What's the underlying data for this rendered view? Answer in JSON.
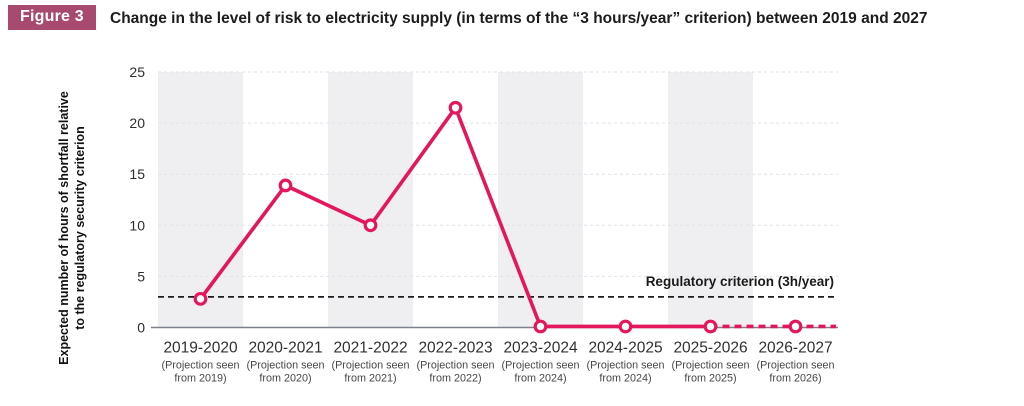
{
  "header": {
    "badge": "Figure 3",
    "title": "Change in the level of risk to electricity supply (in terms of the “3 hours/year” criterion) between 2019 and 2027"
  },
  "chart_data": {
    "type": "line",
    "title": "Change in the level of risk to electricity supply (in terms of the “3 hours/year” criterion) between 2019 and 2027",
    "categories": [
      "2019-2020",
      "2020-2021",
      "2021-2022",
      "2022-2023",
      "2023-2024",
      "2024-2025",
      "2025-2026",
      "2026-2027"
    ],
    "sub_labels": [
      [
        "(Projection seen",
        "from 2019)"
      ],
      [
        "(Projection seen",
        "from 2020)"
      ],
      [
        "(Projection seen",
        "from 2021)"
      ],
      [
        "(Projection seen",
        "from 2022)"
      ],
      [
        "(Projection seen",
        "from 2024)"
      ],
      [
        "(Projection seen",
        "from 2024)"
      ],
      [
        "(Projection seen",
        "from 2025)"
      ],
      [
        "(Projection seen",
        "from 2026)"
      ]
    ],
    "values": [
      2.8,
      13.9,
      10,
      21.5,
      0.1,
      0.1,
      0.1,
      0.1
    ],
    "solid_until_index": 6,
    "ylabel_lines": [
      "Expected number of hours of shortfall relative",
      "to the regulatory security criterion"
    ],
    "ylim": [
      0,
      25
    ],
    "yticks": [
      0,
      5,
      10,
      15,
      20,
      25
    ],
    "grid": true,
    "legend_position": "none",
    "reference_line": {
      "value": 3,
      "label": "Regulatory criterion (3h/year)"
    },
    "colors": {
      "series": "#e4165c",
      "band": "#efeff1",
      "reference": "#1d1d1f",
      "grid": "#e2e2e4",
      "axis": "#7b828b",
      "badge_bg": "#a84a6f",
      "title_text": "#1c1c1c"
    }
  }
}
